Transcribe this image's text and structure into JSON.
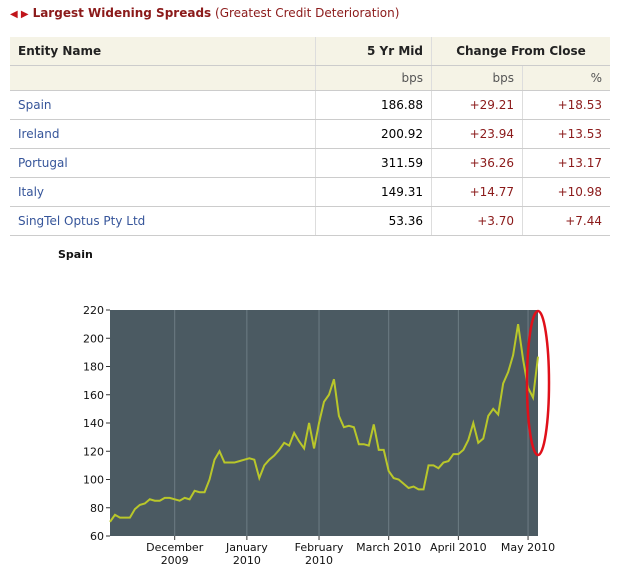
{
  "header": {
    "title": "Largest Widening Spreads",
    "subtitle": "(Greatest Credit Deterioration)"
  },
  "table": {
    "columns": [
      "Entity Name",
      "5 Yr Mid",
      "Change From Close"
    ],
    "units": [
      "bps",
      "bps",
      "%"
    ],
    "rows": [
      [
        "Spain",
        "186.88",
        "+29.21",
        "+18.53"
      ],
      [
        "Ireland",
        "200.92",
        "+23.94",
        "+13.53"
      ],
      [
        "Portugal",
        "311.59",
        "+36.26",
        "+13.17"
      ],
      [
        "Italy",
        "149.31",
        "+14.77",
        "+10.98"
      ],
      [
        "SingTel Optus Pty Ltd",
        "53.36",
        "+3.70",
        "+7.44"
      ]
    ]
  },
  "chart_data": {
    "type": "line",
    "title": "Spain",
    "color": "#b9c72a",
    "values": [
      70,
      75,
      73,
      73,
      73,
      79,
      82,
      83,
      86,
      85,
      85,
      87,
      87,
      86,
      85,
      87,
      86,
      92,
      91,
      91,
      100,
      114,
      120,
      112,
      112,
      112,
      113,
      114,
      115,
      114,
      101,
      110,
      114,
      117,
      121,
      126,
      124,
      133,
      127,
      122,
      140,
      122,
      140,
      155,
      160,
      171,
      145,
      137,
      138,
      137,
      125,
      125,
      124,
      139,
      121,
      121,
      106,
      101,
      100,
      97,
      94,
      95,
      93,
      93,
      110,
      110,
      108,
      112,
      113,
      118,
      118,
      121,
      128,
      140,
      126,
      129,
      145,
      150,
      146,
      168,
      176,
      188,
      210,
      185,
      165,
      158,
      187
    ],
    "xlim": [
      0,
      86
    ],
    "xticks": [
      {
        "value": 13,
        "label": [
          "December",
          "2009"
        ]
      },
      {
        "value": 27.5,
        "label": [
          "January",
          "2010"
        ]
      },
      {
        "value": 42,
        "label": [
          "February",
          "2010"
        ]
      },
      {
        "value": 56,
        "label": [
          "March 2010"
        ]
      },
      {
        "value": 70,
        "label": [
          "April 2010"
        ]
      },
      {
        "value": 84,
        "label": [
          "May 2010"
        ]
      }
    ],
    "ylim": [
      60,
      220
    ],
    "yticks": [
      60,
      80,
      100,
      120,
      140,
      160,
      180,
      200,
      220
    ]
  }
}
